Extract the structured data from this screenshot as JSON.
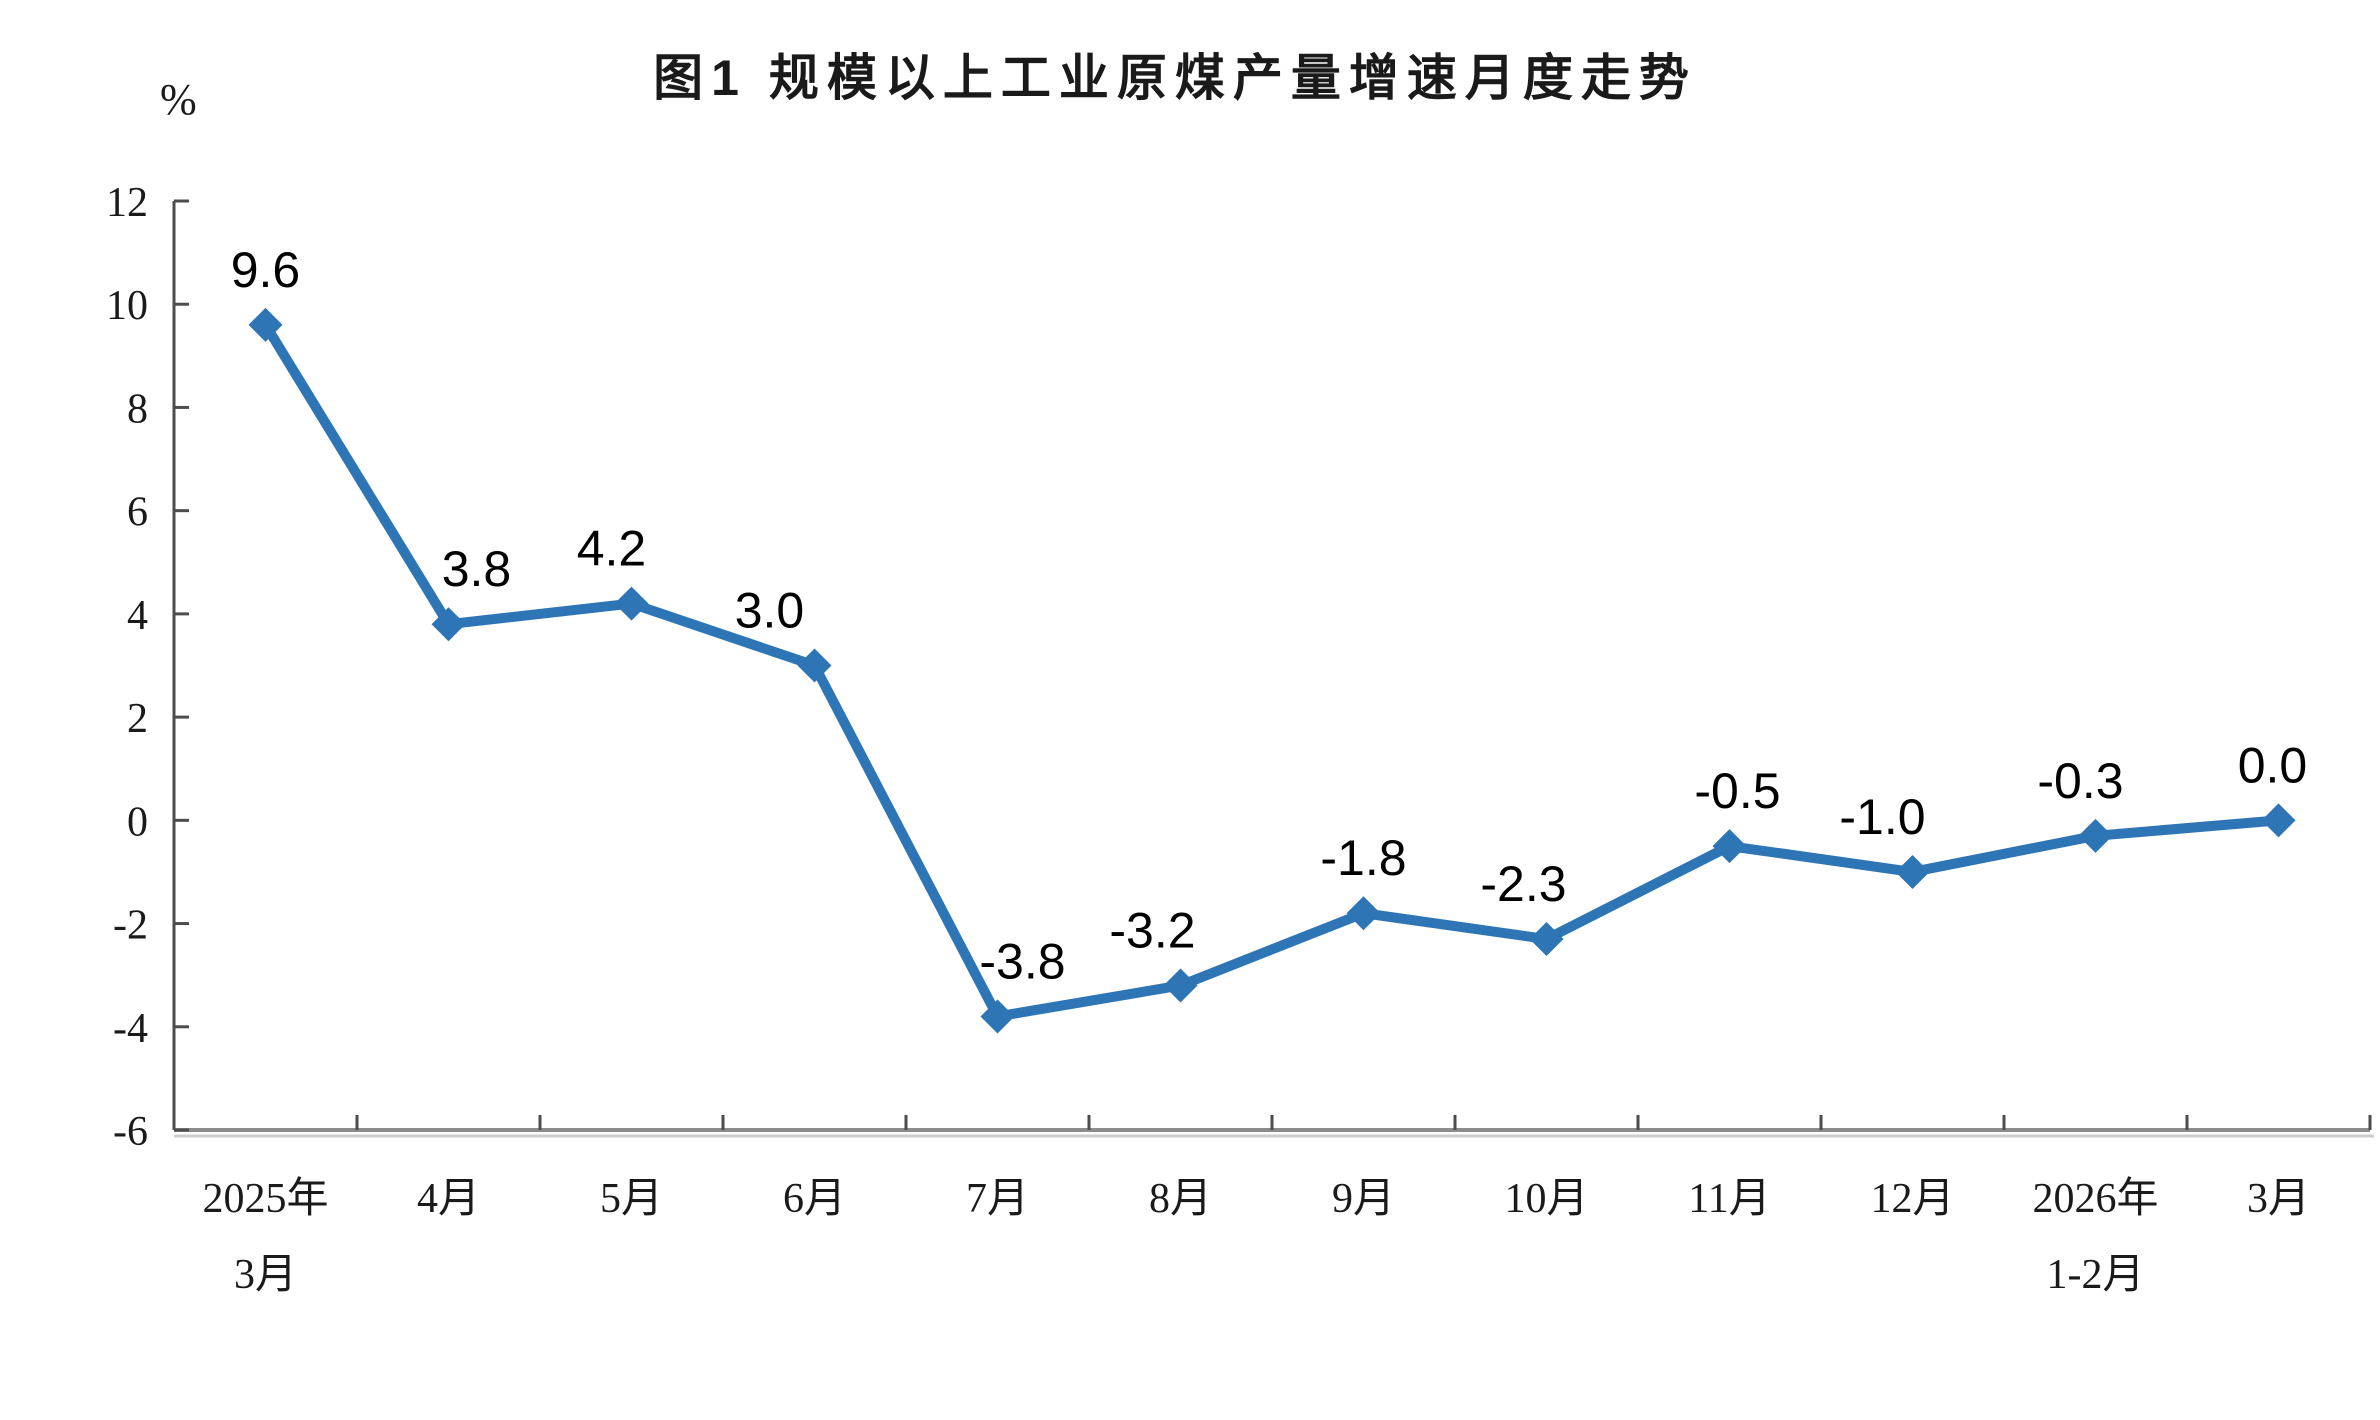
{
  "chart_data": {
    "type": "line",
    "title": "图1  规模以上工业原煤产量增速月度走势",
    "ylabel": "%",
    "xlabel": "",
    "categories": [
      "2025年\n3月",
      "4月",
      "5月",
      "6月",
      "7月",
      "8月",
      "9月",
      "10月",
      "11月",
      "12月",
      "2026年\n1-2月",
      "3月"
    ],
    "values": [
      9.6,
      3.8,
      4.2,
      3.0,
      -3.8,
      -3.2,
      -1.8,
      -2.3,
      -0.5,
      -1.0,
      -0.3,
      0.0
    ],
    "point_labels": [
      "9.6",
      "3.8",
      "4.2",
      "3.0",
      "-3.8",
      "-3.2",
      "-1.8",
      "-2.3",
      "-0.5",
      "-1.0",
      "-0.3",
      "0.0"
    ],
    "ylim": [
      -6,
      12
    ],
    "yticks": [
      12,
      10,
      8,
      6,
      4,
      2,
      0,
      -2,
      -4,
      -6
    ],
    "grid": false,
    "legend": "none",
    "line_color": "#2E75B6",
    "marker": "diamond",
    "axis_color": "#4d4d4d",
    "x_axis_line_color": "#8c8c8c"
  }
}
